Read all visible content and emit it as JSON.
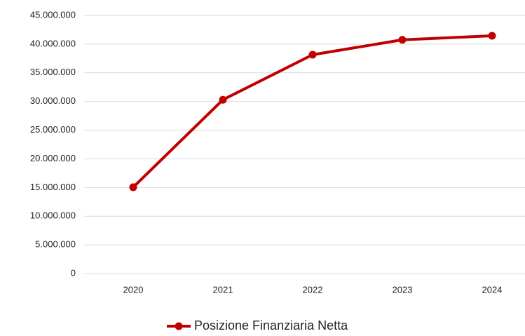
{
  "chart_data": {
    "type": "line",
    "categories": [
      "2020",
      "2021",
      "2022",
      "2023",
      "2024"
    ],
    "series": [
      {
        "name": "Posizione Finanziaria Netta",
        "color": "#c00000",
        "values": [
          15050000,
          30300000,
          38150000,
          40750000,
          41450000
        ]
      }
    ],
    "ylim": [
      0,
      45000000
    ],
    "yticks": [
      0,
      {
        "value": 5000000,
        "label": "5.000.000"
      },
      {
        "value": 10000000,
        "label": "10.000.000"
      },
      {
        "value": 15000000,
        "label": "15.000.000"
      },
      {
        "value": 20000000,
        "label": "20.000.000"
      },
      {
        "value": 25000000,
        "label": "25.000.000"
      },
      {
        "value": 30000000,
        "label": "30.000.000"
      },
      {
        "value": 35000000,
        "label": "35.000.000"
      },
      {
        "value": 40000000,
        "label": "40.000.000"
      },
      {
        "value": 45000000,
        "label": "45.000.000"
      }
    ],
    "grid": true,
    "legend": "bottom"
  }
}
